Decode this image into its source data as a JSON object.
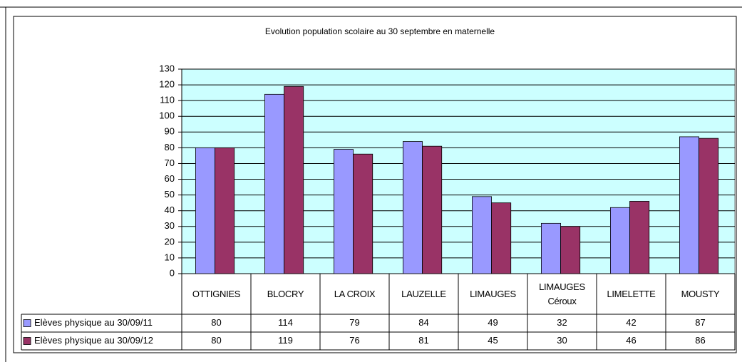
{
  "chart_data": {
    "type": "bar",
    "title": "Evolution population scolaire au 30 septembre en maternelle",
    "categories": [
      "OTTIGNIES",
      "BLOCRY",
      "LA CROIX",
      "LAUZELLE",
      "LIMAUGES",
      "LIMAUGES Céroux",
      "LIMELETTE",
      "MOUSTY"
    ],
    "series": [
      {
        "name": "Elèves physique au 30/09/11",
        "color": "#9999ff",
        "values": [
          80,
          114,
          79,
          84,
          49,
          32,
          42,
          87
        ]
      },
      {
        "name": "Elèves physique au 30/09/12",
        "color": "#993366",
        "values": [
          80,
          119,
          76,
          81,
          45,
          30,
          46,
          86
        ]
      }
    ],
    "ylim": [
      0,
      130
    ],
    "yticks": [
      0,
      10,
      20,
      30,
      40,
      50,
      60,
      70,
      80,
      90,
      100,
      110,
      120,
      130
    ],
    "grid": true,
    "plot_background": "#ccffff"
  }
}
